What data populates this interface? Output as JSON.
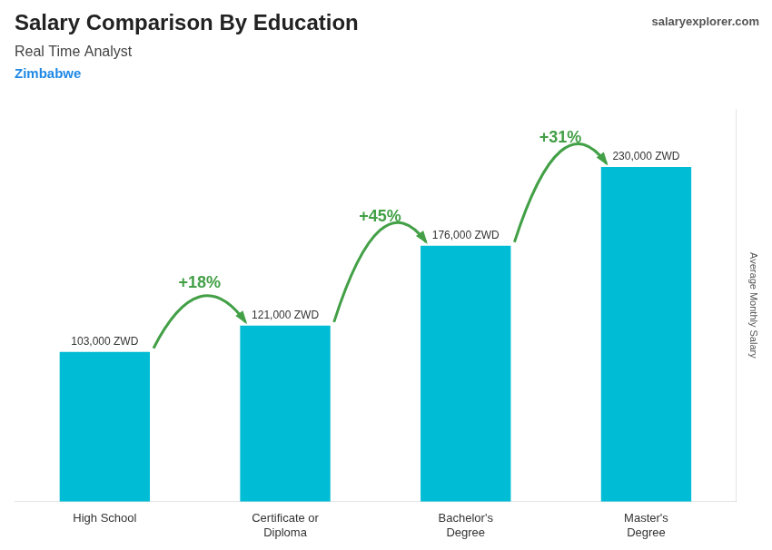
{
  "chart_data": {
    "type": "bar",
    "title": "Salary Comparison By Education",
    "subtitle": [
      "Real Time Analyst",
      "Zimbabwe"
    ],
    "ylabel": "Average Monthly Salary",
    "categories": [
      "High School",
      "Certificate or\nDiploma",
      "Bachelor's\nDegree",
      "Master's\nDegree"
    ],
    "values": [
      103000,
      121000,
      176000,
      230000
    ],
    "value_labels": [
      "103,000 ZWD",
      "121,000 ZWD",
      "176,000 ZWD",
      "230,000 ZWD"
    ],
    "data_labels": true,
    "color": "#00bcd4",
    "ylim": [
      0,
      270000
    ],
    "grid": false,
    "tick_labels": "x",
    "annotations": [
      {
        "text": "salaryexplorer.com"
      },
      {
        "text": "+18%",
        "between": [
          "High School",
          "Certificate or\nDiploma"
        ]
      },
      {
        "text": "+45%",
        "between": [
          "Certificate or\nDiploma",
          "Bachelor's\nDegree"
        ]
      },
      {
        "text": "+31%",
        "between": [
          "Bachelor's\nDegree",
          "Master's\nDegree"
        ]
      }
    ]
  }
}
